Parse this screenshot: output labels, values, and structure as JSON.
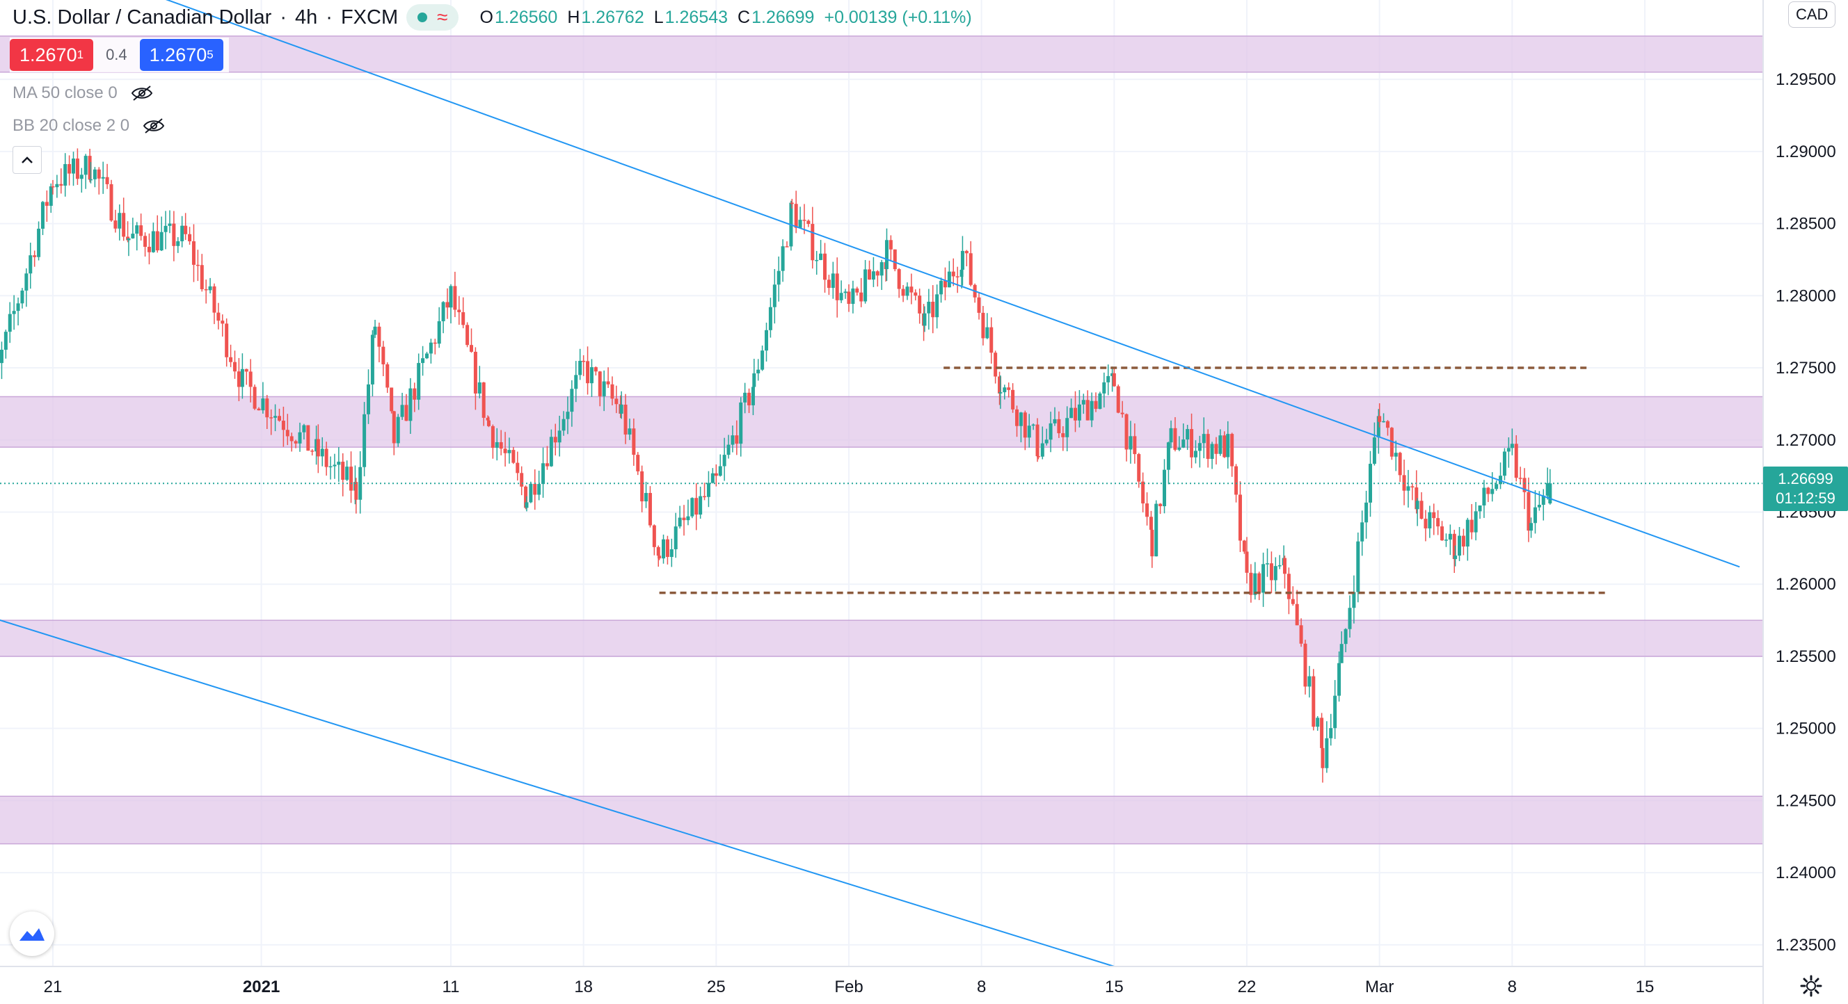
{
  "header": {
    "title": "U.S. Dollar / Canadian Dollar",
    "timeframe": "4h",
    "exchange": "FXCM",
    "ohlc": {
      "open_label": "O",
      "open": "1.26560",
      "high_label": "H",
      "high": "1.26762",
      "low_label": "L",
      "low": "1.26543",
      "close_label": "C",
      "close": "1.26699",
      "change": "+0.00139 (+0.11%)"
    }
  },
  "trade": {
    "sell_main": "1.2670",
    "sell_pip": "1",
    "spread": "0.4",
    "buy_main": "1.2670",
    "buy_pip": "5"
  },
  "indicators": {
    "ma": "MA 50 close 0",
    "bb": "BB 20 close 2 0"
  },
  "currency_badge": "CAD",
  "last_price": {
    "value": "1.26699",
    "countdown": "01:12:59"
  },
  "colors": {
    "up": "#26a69a",
    "down": "#ef5350",
    "zone": "#e1c8ea",
    "trendline": "#2196f3",
    "level": "#8b5a3c",
    "grid": "#f0f3fa"
  },
  "chart_data": {
    "type": "candlestick",
    "symbol": "USDCAD",
    "interval": "4h",
    "ylim": [
      1.2335,
      1.3005
    ],
    "price_axis_labels": [
      "1.29500",
      "1.29000",
      "1.28500",
      "1.28000",
      "1.27500",
      "1.27000",
      "1.26500",
      "1.26000",
      "1.25500",
      "1.25000",
      "1.24500",
      "1.24000",
      "1.23500"
    ],
    "x_axis_labels": [
      "21",
      "2021",
      "11",
      "18",
      "25",
      "Feb",
      "8",
      "15",
      "22",
      "Mar",
      "8",
      "15"
    ],
    "x_axis_dates": [
      "2020-12-21",
      "2021-01-01",
      "2021-01-11",
      "2021-01-18",
      "2021-01-25",
      "2021-02-01",
      "2021-02-08",
      "2021-02-15",
      "2021-02-22",
      "2021-03-01",
      "2021-03-08",
      "2021-03-15"
    ],
    "candle_path": [
      [
        "2020-12-17",
        1.27
      ],
      [
        "2020-12-21",
        1.288
      ],
      [
        "2020-12-23",
        1.289
      ],
      [
        "2020-12-25",
        1.284
      ],
      [
        "2020-12-28",
        1.284
      ],
      [
        "2020-12-31",
        1.274
      ],
      [
        "2021-01-04",
        1.269
      ],
      [
        "2021-01-06",
        1.2665
      ],
      [
        "2021-01-07",
        1.278
      ],
      [
        "2021-01-08",
        1.27
      ],
      [
        "2021-01-11",
        1.28
      ],
      [
        "2021-01-13",
        1.271
      ],
      [
        "2021-01-15",
        1.266
      ],
      [
        "2021-01-18",
        1.275
      ],
      [
        "2021-01-20",
        1.272
      ],
      [
        "2021-01-22",
        1.262
      ],
      [
        "2021-01-25",
        1.267
      ],
      [
        "2021-01-27",
        1.274
      ],
      [
        "2021-01-29",
        1.286
      ],
      [
        "2021-02-01",
        1.279
      ],
      [
        "2021-02-03",
        1.283
      ],
      [
        "2021-02-05",
        1.278
      ],
      [
        "2021-02-07",
        1.283
      ],
      [
        "2021-02-09",
        1.274
      ],
      [
        "2021-02-11",
        1.2695
      ],
      [
        "2021-02-15",
        1.274
      ],
      [
        "2021-02-17",
        1.263
      ],
      [
        "2021-02-18",
        1.27
      ],
      [
        "2021-02-21",
        1.2695
      ],
      [
        "2021-02-22",
        1.26
      ],
      [
        "2021-02-24",
        1.261
      ],
      [
        "2021-02-26",
        1.248
      ],
      [
        "2021-02-27",
        1.255
      ],
      [
        "2021-03-01",
        1.272
      ],
      [
        "2021-03-03",
        1.265
      ],
      [
        "2021-03-05",
        1.2625
      ],
      [
        "2021-03-08",
        1.269
      ],
      [
        "2021-03-09",
        1.264
      ],
      [
        "2021-03-10",
        1.267
      ]
    ],
    "zones": [
      {
        "from": 1.2955,
        "to": 1.298
      },
      {
        "from": 1.2695,
        "to": 1.273
      },
      {
        "from": 1.255,
        "to": 1.2575
      },
      {
        "from": 1.242,
        "to": 1.2453
      }
    ],
    "horizontal_levels": [
      {
        "price": 1.275,
        "from": "2021-02-06",
        "to": "2021-03-12",
        "style": "dashed"
      },
      {
        "price": 1.2594,
        "from": "2021-01-22",
        "to": "2021-03-13",
        "style": "dashed"
      }
    ],
    "trendlines": [
      {
        "from": [
          "2020-12-26",
          1.301
        ],
        "to": [
          "2021-03-20",
          1.2612
        ]
      },
      {
        "from": [
          "2020-12-17",
          1.258
        ],
        "to": [
          "2021-02-15",
          1.2335
        ]
      }
    ],
    "last_price_line": 1.26699,
    "grid": true
  }
}
